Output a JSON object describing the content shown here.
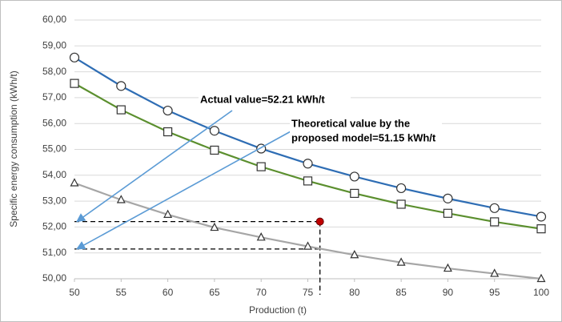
{
  "chart_data": {
    "type": "line",
    "x_label": "Production (t)",
    "y_label": "Specific energy consumption (kWh/t)",
    "x": [
      50,
      55,
      60,
      65,
      70,
      75,
      80,
      85,
      90,
      95,
      100
    ],
    "series": [
      {
        "color": "#2e6db4",
        "marker": "circle",
        "values": [
          58.55,
          57.45,
          56.5,
          55.72,
          55.03,
          54.45,
          53.95,
          53.5,
          53.1,
          52.73,
          52.4
        ]
      },
      {
        "color": "#5b8f2e",
        "marker": "square",
        "values": [
          57.55,
          56.53,
          55.68,
          54.97,
          54.33,
          53.78,
          53.3,
          52.88,
          52.53,
          52.2,
          51.93
        ]
      },
      {
        "color": "#a6a6a6",
        "marker": "triangle",
        "values": [
          53.7,
          53.05,
          52.48,
          51.98,
          51.6,
          51.25,
          50.92,
          50.63,
          50.4,
          50.2,
          50.0
        ]
      }
    ],
    "xlim": [
      50,
      100
    ],
    "xticks": [
      50,
      55,
      60,
      65,
      70,
      75,
      80,
      85,
      90,
      95,
      100
    ],
    "ylim": [
      50,
      60
    ],
    "yticks": [
      {
        "value": 50,
        "label": "50,00"
      },
      {
        "value": 51,
        "label": "51,00"
      },
      {
        "value": 52,
        "label": "52,00"
      },
      {
        "value": 53,
        "label": "53,00"
      },
      {
        "value": 54,
        "label": "54,00"
      },
      {
        "value": 55,
        "label": "55,00"
      },
      {
        "value": 56,
        "label": "56,00"
      },
      {
        "value": 57,
        "label": "57,00"
      },
      {
        "value": 58,
        "label": "58,00"
      },
      {
        "value": 59,
        "label": "59,00"
      },
      {
        "value": 60,
        "label": "60,00"
      }
    ],
    "grid": true,
    "point": {
      "x": 76.3,
      "y": 52.21,
      "color": "#c00000"
    },
    "theoretical_y": 51.15,
    "annotations": [
      {
        "lines": [
          "Actual value=52.21 kWh/t"
        ],
        "arrow_to": 52.21
      },
      {
        "lines": [
          "Theoretical value by the",
          "proposed model=51.15 kWh/t"
        ],
        "arrow_to": 51.15
      }
    ],
    "arrow_color": "#5b9bd5"
  }
}
